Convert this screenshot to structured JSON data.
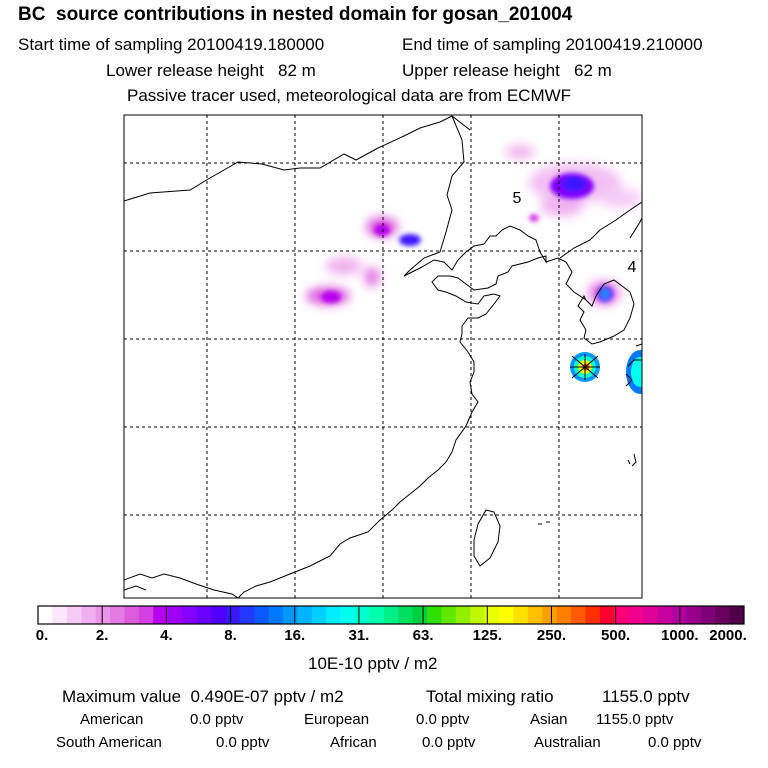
{
  "header": {
    "title": "BC  source contributions in nested domain for gosan_201004",
    "start_label": "Start time of sampling 20100419.180000",
    "end_label": "End time of sampling 20100419.210000",
    "lower_label": "Lower release height   82 m",
    "upper_label": "Upper release height   62 m",
    "tracer_note": "Passive tracer used, meteorological data are from ECMWF"
  },
  "map": {
    "region_labels": [
      "5",
      "4"
    ]
  },
  "colorbar": {
    "ticks": [
      "0.",
      "2.",
      "4.",
      "8.",
      "16.",
      "31.",
      "63.",
      "125.",
      "250.",
      "500.",
      "1000.",
      "2000."
    ],
    "unit": "10E-10 pptv / m2",
    "colors": [
      "#ffffff",
      "#fbe6fb",
      "#f6ccf6",
      "#f0b0f0",
      "#ea96ea",
      "#e47ae4",
      "#dc5ddc",
      "#d240e4",
      "#b800f0",
      "#a000f8",
      "#8400ff",
      "#6a00ff",
      "#5000ff",
      "#3a18ff",
      "#2438ff",
      "#0c58ff",
      "#0078ff",
      "#0098ff",
      "#00b4ff",
      "#00d0ff",
      "#00ecff",
      "#00ffee",
      "#00ffcc",
      "#00ffaa",
      "#00f088",
      "#00e060",
      "#00d040",
      "#30e000",
      "#60e800",
      "#90f000",
      "#c0f800",
      "#e8ff00",
      "#ffff00",
      "#ffe000",
      "#ffc000",
      "#ffa000",
      "#ff8000",
      "#ff5a00",
      "#ff3000",
      "#ff0030",
      "#ff0078",
      "#f0008c",
      "#e00098",
      "#c800a0",
      "#b000a0",
      "#98008c",
      "#800078",
      "#68005e",
      "#500048"
    ]
  },
  "summary": {
    "max_label": "Maximum value  0.490E-07 pptv / m2",
    "total_label": "Total mixing ratio",
    "total_value": "1155.0 pptv",
    "regions": [
      {
        "name": "American",
        "value": "0.0 pptv"
      },
      {
        "name": "European",
        "value": "0.0 pptv"
      },
      {
        "name": "Asian",
        "value": "1155.0 pptv"
      },
      {
        "name": "South American",
        "value": "0.0 pptv"
      },
      {
        "name": "African",
        "value": "0.0 pptv"
      },
      {
        "name": "Australian",
        "value": "0.0 pptv"
      }
    ]
  }
}
